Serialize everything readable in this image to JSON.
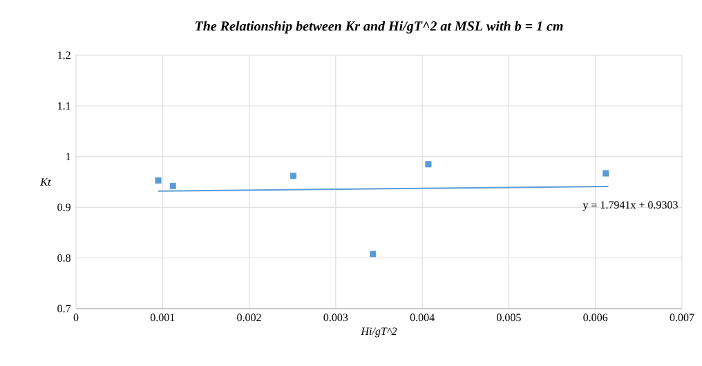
{
  "chart_data": {
    "type": "scatter",
    "title": "The Relationship between Kr and Hi/gT^2 at MSL with b = 1 cm",
    "xlabel": "Hi/gT^2",
    "ylabel": "Kt",
    "xlim": [
      0,
      0.007
    ],
    "xticks": [
      0,
      0.001,
      0.002,
      0.003,
      0.004,
      0.005,
      0.006,
      0.007
    ],
    "ylim": [
      0.7,
      1.2
    ],
    "yticks": [
      0.7,
      0.8,
      0.9,
      1,
      1.1,
      1.2
    ],
    "grid": true,
    "series": [
      {
        "marker": "square",
        "color": "#5b9bd5",
        "x": [
          0.00095,
          0.00112,
          0.00251,
          0.00343,
          0.00407,
          0.00612
        ],
        "values": [
          0.953,
          0.942,
          0.962,
          0.808,
          0.985,
          0.967
        ]
      },
      {
        "type": "line",
        "marker": "none",
        "color": "#5b9bd5",
        "x": [
          0.00095,
          0.00615
        ],
        "values": [
          0.932,
          0.941
        ]
      }
    ],
    "annotations": [
      "y = 1.7941x + 0.9303"
    ]
  }
}
